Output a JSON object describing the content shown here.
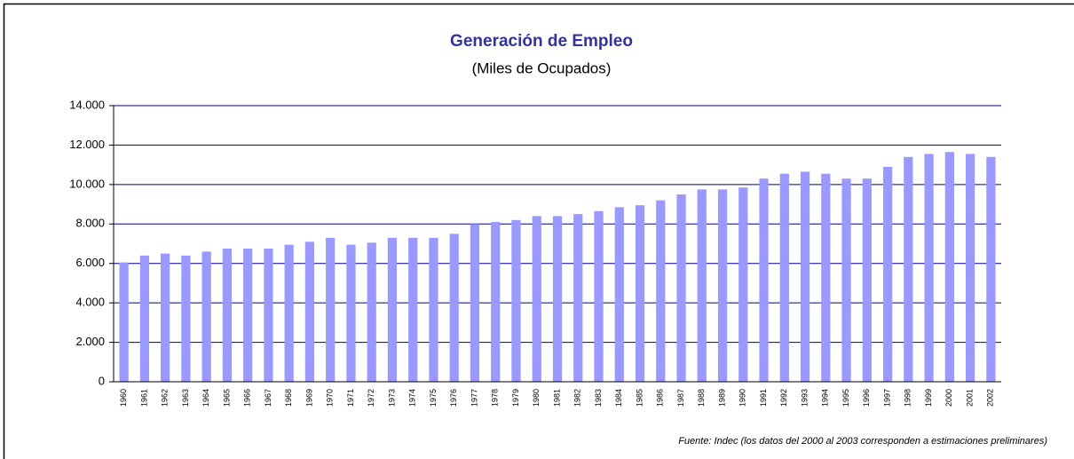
{
  "chart_data": {
    "type": "bar",
    "title": "Generación de Empleo",
    "subtitle": "(Miles de Ocupados)",
    "note": "Fuente: Indec (los datos del 2000 al 2003 corresponden a estimaciones preliminares)",
    "categories": [
      "1960",
      "1961",
      "1962",
      "1963",
      "1964",
      "1965",
      "1966",
      "1967",
      "1968",
      "1969",
      "1970",
      "1971",
      "1972",
      "1973",
      "1974",
      "1975",
      "1976",
      "1977",
      "1978",
      "1979",
      "1980",
      "1981",
      "1982",
      "1983",
      "1984",
      "1985",
      "1986",
      "1987",
      "1988",
      "1989",
      "1990",
      "1991",
      "1992",
      "1993",
      "1994",
      "1995",
      "1996",
      "1997",
      "1998",
      "1999",
      "2000",
      "2001",
      "2002"
    ],
    "values": [
      6050,
      6400,
      6500,
      6400,
      6600,
      6750,
      6750,
      6750,
      6950,
      7100,
      7300,
      6950,
      7050,
      7300,
      7300,
      7300,
      7500,
      8000,
      8100,
      8200,
      8400,
      8400,
      8500,
      8650,
      8850,
      8950,
      9200,
      9500,
      9750,
      9750,
      9850,
      10300,
      10550,
      10650,
      10550,
      10300,
      10300,
      10900,
      11400,
      11550,
      11650,
      11550,
      11400
    ],
    "color": "#9999ff",
    "ylim": [
      0,
      14000
    ],
    "yticks": [
      0,
      {
        "value": 2000,
        "label": "2.000"
      },
      {
        "value": 4000,
        "label": "4.000"
      },
      {
        "value": 6000,
        "label": "6.000"
      },
      {
        "value": 8000,
        "label": "8.000"
      },
      {
        "value": 10000,
        "label": "10.000"
      },
      {
        "value": 12000,
        "label": "12.000"
      },
      {
        "value": 14000,
        "label": "14.000"
      }
    ],
    "grid": true
  }
}
